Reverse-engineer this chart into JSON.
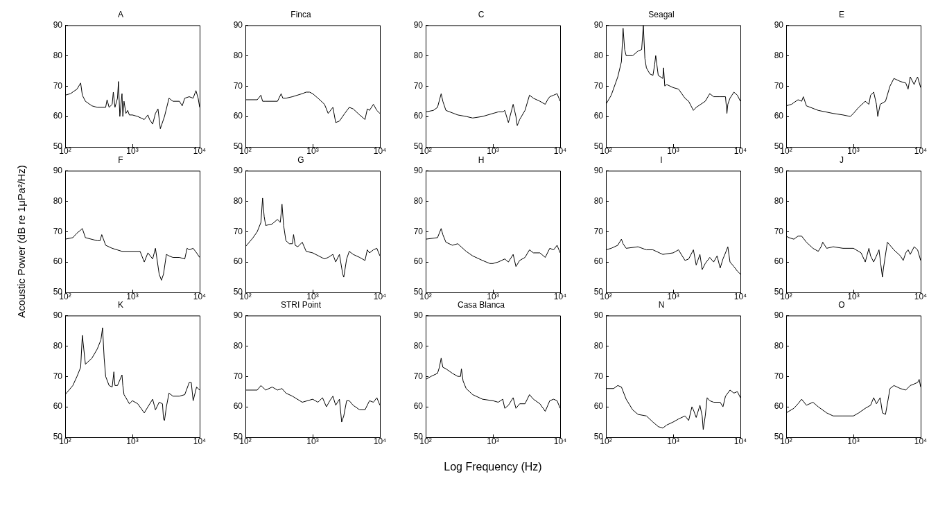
{
  "chart_data": [
    {
      "type": "line",
      "title": "A",
      "x": [
        100,
        120,
        150,
        170,
        180,
        200,
        250,
        300,
        400,
        420,
        450,
        500,
        520,
        550,
        600,
        620,
        650,
        700,
        720,
        750,
        800,
        850,
        900,
        1000,
        1200,
        1500,
        1700,
        1800,
        2000,
        2200,
        2400,
        2600,
        3000,
        3500,
        4000,
        5000,
        5500,
        6000,
        7000,
        8000,
        8800,
        9500,
        10000
      ],
      "series": [
        {
          "color": "#000000",
          "values": [
            67,
            67.5,
            69,
            71,
            67,
            65,
            63.5,
            63,
            63,
            65.5,
            63,
            64,
            68,
            63,
            66,
            71.5,
            60,
            67.5,
            60,
            65,
            61,
            62,
            60.5,
            60.5,
            60,
            59,
            60.5,
            59,
            57.5,
            61,
            62.5,
            56,
            60,
            66,
            65,
            65,
            63.5,
            66,
            66.5,
            66,
            68.5,
            66,
            63
          ]
        }
      ],
      "xlim": [
        100,
        10000
      ],
      "ylim": [
        50,
        90
      ],
      "xticks": [
        {
          "value": 100,
          "label": "10²"
        },
        {
          "value": 1000,
          "label": "10³"
        },
        {
          "value": 10000,
          "label": "10⁴"
        }
      ],
      "yticks": [
        50,
        60,
        70,
        80,
        90
      ],
      "log": "x",
      "marker": "none"
    },
    {
      "type": "line",
      "title": "Finca",
      "x": [
        100,
        150,
        170,
        180,
        200,
        300,
        340,
        360,
        400,
        500,
        700,
        800,
        900,
        1000,
        1200,
        1500,
        1700,
        2000,
        2200,
        2500,
        3000,
        3500,
        4000,
        5000,
        6000,
        6500,
        7000,
        8000,
        9000,
        10000
      ],
      "series": [
        {
          "color": "#000000",
          "values": [
            65.5,
            65.5,
            67,
            65,
            65,
            65,
            67.5,
            66,
            66,
            66.5,
            67.5,
            68,
            68,
            67.5,
            66,
            64,
            61,
            63,
            58,
            58.5,
            61,
            63,
            62.5,
            60.5,
            59,
            62.5,
            62,
            64,
            62,
            61
          ]
        }
      ],
      "xlim": [
        100,
        10000
      ],
      "ylim": [
        50,
        90
      ],
      "xticks": [
        {
          "value": 100,
          "label": "10²"
        },
        {
          "value": 1000,
          "label": "10³"
        },
        {
          "value": 10000,
          "label": "10⁴"
        }
      ],
      "yticks": [
        50,
        60,
        70,
        80,
        90
      ],
      "log": "x",
      "marker": "none"
    },
    {
      "type": "line",
      "title": "C",
      "x": [
        100,
        130,
        150,
        170,
        180,
        200,
        300,
        400,
        500,
        700,
        1000,
        1200,
        1400,
        1500,
        1700,
        2000,
        2200,
        2300,
        2500,
        3000,
        3500,
        4000,
        5000,
        6000,
        6500,
        7000,
        8000,
        9000,
        10000
      ],
      "series": [
        {
          "color": "#000000",
          "values": [
            61.5,
            62,
            63,
            67.5,
            65,
            62,
            60.5,
            60,
            59.5,
            60,
            61,
            61.5,
            61.5,
            62,
            58,
            64,
            60,
            57,
            59,
            62,
            67,
            66,
            65,
            64,
            65.5,
            66.5,
            67,
            67.5,
            65
          ]
        }
      ],
      "xlim": [
        100,
        10000
      ],
      "ylim": [
        50,
        90
      ],
      "xticks": [
        {
          "value": 100,
          "label": "10²"
        },
        {
          "value": 1000,
          "label": "10³"
        },
        {
          "value": 10000,
          "label": "10⁴"
        }
      ],
      "yticks": [
        50,
        60,
        70,
        80,
        90
      ],
      "log": "x",
      "marker": "none"
    },
    {
      "type": "line",
      "title": "Seagal",
      "x": [
        100,
        120,
        150,
        170,
        180,
        190,
        200,
        250,
        300,
        340,
        360,
        380,
        400,
        450,
        500,
        530,
        550,
        600,
        650,
        700,
        720,
        750,
        800,
        1000,
        1200,
        1500,
        1700,
        2000,
        2200,
        3000,
        3500,
        4000,
        5000,
        6000,
        6300,
        6500,
        7000,
        8000,
        9000,
        10000
      ],
      "series": [
        {
          "color": "#000000",
          "values": [
            64,
            67,
            73,
            78,
            89,
            82,
            80,
            80,
            81.5,
            82,
            90,
            79,
            76,
            74,
            73.5,
            77,
            80,
            73.5,
            73,
            72.5,
            76,
            70,
            70.5,
            69.5,
            69,
            66,
            65,
            62,
            63,
            65,
            67.5,
            66.5,
            66.5,
            66.5,
            61,
            64,
            66,
            68,
            67,
            65
          ]
        }
      ],
      "xlim": [
        100,
        10000
      ],
      "ylim": [
        50,
        90
      ],
      "xticks": [
        {
          "value": 100,
          "label": "10²"
        },
        {
          "value": 1000,
          "label": "10³"
        },
        {
          "value": 10000,
          "label": "10⁴"
        }
      ],
      "yticks": [
        50,
        60,
        70,
        80,
        90
      ],
      "log": "x",
      "marker": "none"
    },
    {
      "type": "line",
      "title": "E",
      "x": [
        100,
        120,
        150,
        170,
        180,
        200,
        300,
        500,
        700,
        900,
        1000,
        1200,
        1500,
        1700,
        1800,
        2000,
        2200,
        2300,
        2500,
        3000,
        3500,
        4000,
        5000,
        6000,
        6500,
        7000,
        8000,
        8500,
        9000,
        10000
      ],
      "series": [
        {
          "color": "#000000",
          "values": [
            63.5,
            64,
            65.5,
            65,
            66.5,
            63.5,
            62,
            61,
            60.5,
            60,
            61,
            63,
            65,
            64,
            67,
            68,
            64,
            60,
            64,
            65,
            70,
            72.5,
            71.5,
            71,
            69,
            73,
            70.5,
            72,
            73,
            69.5
          ]
        }
      ],
      "xlim": [
        100,
        10000
      ],
      "ylim": [
        50,
        90
      ],
      "xticks": [
        {
          "value": 100,
          "label": "10²"
        },
        {
          "value": 1000,
          "label": "10³"
        },
        {
          "value": 10000,
          "label": "10⁴"
        }
      ],
      "yticks": [
        50,
        60,
        70,
        80,
        90
      ],
      "log": "x",
      "marker": "none"
    },
    {
      "type": "line",
      "title": "F",
      "ylabel": "Acoustic Power (dB re 1μPa²/Hz)",
      "x": [
        100,
        130,
        150,
        170,
        180,
        200,
        300,
        330,
        350,
        400,
        500,
        700,
        1000,
        1300,
        1500,
        1700,
        2000,
        2200,
        2500,
        2700,
        2900,
        3200,
        3500,
        4000,
        5000,
        6000,
        6500,
        7000,
        8000,
        9000,
        10000
      ],
      "series": [
        {
          "color": "#000000",
          "values": [
            67.5,
            68,
            69.5,
            70.5,
            71,
            68,
            67,
            67,
            69,
            65.5,
            64.5,
            63.5,
            63.5,
            63.5,
            60,
            63,
            61,
            64.5,
            56,
            54,
            56,
            62.5,
            62,
            61.5,
            61.5,
            61,
            64.5,
            64,
            64.5,
            63,
            61.5
          ]
        }
      ],
      "xlim": [
        100,
        10000
      ],
      "ylim": [
        50,
        90
      ],
      "xticks": [
        {
          "value": 100,
          "label": "10²"
        },
        {
          "value": 1000,
          "label": "10³"
        },
        {
          "value": 10000,
          "label": "10⁴"
        }
      ],
      "yticks": [
        50,
        60,
        70,
        80,
        90
      ],
      "log": "x",
      "marker": "none"
    },
    {
      "type": "line",
      "title": "G",
      "x": [
        100,
        130,
        150,
        170,
        180,
        190,
        200,
        250,
        300,
        330,
        350,
        370,
        400,
        450,
        500,
        520,
        550,
        600,
        700,
        800,
        1000,
        1500,
        1700,
        2000,
        2200,
        2500,
        2800,
        2900,
        3200,
        3500,
        4000,
        5000,
        6000,
        6500,
        7000,
        8000,
        9000,
        10000
      ],
      "series": [
        {
          "color": "#000000",
          "values": [
            65,
            68,
            70,
            73,
            81,
            75,
            72,
            72.5,
            74,
            73,
            79,
            72,
            67,
            66,
            66,
            69,
            65.5,
            65,
            66.5,
            63.5,
            63,
            61,
            61.5,
            62.5,
            60,
            62.5,
            56,
            55,
            61,
            63.5,
            62.5,
            61.5,
            60.5,
            64,
            63,
            64,
            64.5,
            62
          ]
        }
      ],
      "xlim": [
        100,
        10000
      ],
      "ylim": [
        50,
        90
      ],
      "xticks": [
        {
          "value": 100,
          "label": "10²"
        },
        {
          "value": 1000,
          "label": "10³"
        },
        {
          "value": 10000,
          "label": "10⁴"
        }
      ],
      "yticks": [
        50,
        60,
        70,
        80,
        90
      ],
      "log": "x",
      "marker": "none"
    },
    {
      "type": "line",
      "title": "H",
      "x": [
        100,
        150,
        170,
        180,
        200,
        250,
        300,
        400,
        500,
        700,
        900,
        1000,
        1200,
        1500,
        1700,
        2000,
        2200,
        2500,
        3000,
        3500,
        4000,
        5000,
        6000,
        7000,
        8000,
        9000,
        10000
      ],
      "series": [
        {
          "color": "#000000",
          "values": [
            67.5,
            68,
            71,
            69,
            66.5,
            65.5,
            66,
            63.5,
            62,
            60.5,
            59.5,
            59.5,
            60,
            61,
            60,
            62.5,
            58.5,
            60.5,
            61.5,
            64,
            63,
            63,
            61.5,
            64.5,
            64,
            65.5,
            63
          ]
        }
      ],
      "xlim": [
        100,
        10000
      ],
      "ylim": [
        50,
        90
      ],
      "xticks": [
        {
          "value": 100,
          "label": "10²"
        },
        {
          "value": 1000,
          "label": "10³"
        },
        {
          "value": 10000,
          "label": "10⁴"
        }
      ],
      "yticks": [
        50,
        60,
        70,
        80,
        90
      ],
      "log": "x",
      "marker": "none"
    },
    {
      "type": "line",
      "title": "I",
      "x": [
        100,
        120,
        150,
        170,
        180,
        200,
        300,
        400,
        500,
        700,
        1000,
        1200,
        1500,
        1700,
        2000,
        2200,
        2500,
        2700,
        3000,
        3500,
        4000,
        4500,
        5000,
        5500,
        6000,
        6500,
        7000,
        8000,
        9000,
        10000
      ],
      "series": [
        {
          "color": "#000000",
          "values": [
            64,
            64.5,
            65.5,
            67.5,
            66,
            64.5,
            65,
            64,
            64,
            62.5,
            63,
            64,
            60.5,
            61,
            64,
            59,
            62.5,
            57.5,
            59.5,
            61.5,
            60,
            62,
            58,
            61,
            63,
            65,
            60,
            58.5,
            57,
            56
          ]
        }
      ],
      "xlim": [
        100,
        10000
      ],
      "ylim": [
        50,
        90
      ],
      "xticks": [
        {
          "value": 100,
          "label": "10²"
        },
        {
          "value": 1000,
          "label": "10³"
        },
        {
          "value": 10000,
          "label": "10⁴"
        }
      ],
      "yticks": [
        50,
        60,
        70,
        80,
        90
      ],
      "log": "x",
      "marker": "none"
    },
    {
      "type": "line",
      "title": "J",
      "x": [
        100,
        110,
        130,
        150,
        170,
        200,
        250,
        300,
        330,
        350,
        400,
        500,
        700,
        1000,
        1300,
        1500,
        1700,
        1800,
        2000,
        2200,
        2400,
        2700,
        2800,
        3200,
        3500,
        4000,
        5000,
        5500,
        6000,
        6500,
        7000,
        8000,
        9000,
        10000
      ],
      "series": [
        {
          "color": "#000000",
          "values": [
            68.5,
            68,
            67.5,
            68.5,
            68.5,
            66.5,
            64.5,
            63.5,
            65,
            66.5,
            64.5,
            65,
            64.5,
            64.5,
            63,
            60,
            64.5,
            62,
            60,
            62,
            64,
            55,
            58,
            66.5,
            65.5,
            64,
            62,
            60.5,
            63,
            64,
            62.5,
            65,
            64,
            60.5
          ]
        }
      ],
      "xlim": [
        100,
        10000
      ],
      "ylim": [
        50,
        90
      ],
      "xticks": [
        {
          "value": 100,
          "label": "10²"
        },
        {
          "value": 1000,
          "label": "10³"
        },
        {
          "value": 10000,
          "label": "10⁴"
        }
      ],
      "yticks": [
        50,
        60,
        70,
        80,
        90
      ],
      "log": "x",
      "marker": "none"
    },
    {
      "type": "line",
      "title": "K",
      "x": [
        100,
        130,
        150,
        170,
        180,
        200,
        250,
        300,
        340,
        360,
        380,
        400,
        450,
        500,
        530,
        550,
        600,
        700,
        720,
        750,
        800,
        900,
        1000,
        1200,
        1500,
        1700,
        2000,
        2200,
        2500,
        2800,
        2900,
        3000,
        3200,
        3500,
        4000,
        5000,
        6000,
        7000,
        7500,
        8000,
        9000,
        10000
      ],
      "series": [
        {
          "color": "#000000",
          "values": [
            64,
            67,
            70,
            73,
            83.5,
            74,
            76,
            79,
            82,
            86,
            76,
            70,
            67,
            66.5,
            71.5,
            67,
            67,
            70.5,
            67,
            64,
            63,
            61,
            62,
            61,
            58,
            60,
            62.5,
            59,
            61.5,
            61,
            56,
            55.5,
            60,
            64.5,
            63.5,
            63.5,
            64,
            68,
            68,
            62,
            66.5,
            65.5
          ]
        }
      ],
      "xlim": [
        100,
        10000
      ],
      "ylim": [
        50,
        90
      ],
      "xticks": [
        {
          "value": 100,
          "label": "10²"
        },
        {
          "value": 1000,
          "label": "10³"
        },
        {
          "value": 10000,
          "label": "10⁴"
        }
      ],
      "yticks": [
        50,
        60,
        70,
        80,
        90
      ],
      "log": "x",
      "marker": "none"
    },
    {
      "type": "line",
      "title": "STRI Point",
      "x": [
        100,
        150,
        170,
        200,
        250,
        300,
        350,
        400,
        500,
        700,
        1000,
        1200,
        1400,
        1600,
        1800,
        2000,
        2200,
        2500,
        2700,
        2900,
        3200,
        3500,
        4000,
        5000,
        6000,
        7000,
        8000,
        9000,
        10000
      ],
      "series": [
        {
          "color": "#000000",
          "values": [
            65.5,
            65.5,
            67,
            65.5,
            66.5,
            65.5,
            66,
            64.5,
            63.5,
            61.5,
            62.5,
            61.5,
            63,
            60,
            62,
            63.5,
            60.5,
            62.5,
            55,
            57,
            62,
            62,
            60.5,
            59,
            59,
            62,
            61.5,
            63,
            60.5
          ]
        }
      ],
      "xlim": [
        100,
        10000
      ],
      "ylim": [
        50,
        90
      ],
      "xticks": [
        {
          "value": 100,
          "label": "10²"
        },
        {
          "value": 1000,
          "label": "10³"
        },
        {
          "value": 10000,
          "label": "10⁴"
        }
      ],
      "yticks": [
        50,
        60,
        70,
        80,
        90
      ],
      "log": "x",
      "marker": "none"
    },
    {
      "type": "line",
      "title": "Casa Blanca",
      "xlabel": "Log Frequency (Hz)",
      "x": [
        100,
        120,
        150,
        160,
        170,
        180,
        200,
        250,
        300,
        330,
        340,
        360,
        400,
        500,
        700,
        1000,
        1200,
        1400,
        1500,
        1700,
        2000,
        2200,
        2500,
        3000,
        3500,
        4000,
        5000,
        6000,
        7000,
        8000,
        9000,
        10000
      ],
      "series": [
        {
          "color": "#000000",
          "values": [
            69,
            70,
            71,
            73,
            76,
            73,
            72.5,
            71,
            70,
            70,
            72.5,
            68.5,
            66,
            64,
            62.5,
            62,
            61.5,
            62.5,
            59.5,
            60.5,
            63,
            59.5,
            61,
            61,
            64,
            62.5,
            61,
            58.5,
            62,
            62.5,
            62,
            59.5
          ]
        }
      ],
      "xlim": [
        100,
        10000
      ],
      "ylim": [
        50,
        90
      ],
      "xticks": [
        {
          "value": 100,
          "label": "10²"
        },
        {
          "value": 1000,
          "label": "10³"
        },
        {
          "value": 10000,
          "label": "10⁴"
        }
      ],
      "yticks": [
        50,
        60,
        70,
        80,
        90
      ],
      "log": "x",
      "marker": "none"
    },
    {
      "type": "line",
      "title": "N",
      "x": [
        100,
        130,
        150,
        170,
        200,
        250,
        300,
        400,
        500,
        600,
        700,
        800,
        1000,
        1200,
        1500,
        1700,
        1900,
        2000,
        2200,
        2500,
        2700,
        2800,
        3000,
        3200,
        3500,
        4000,
        5000,
        5500,
        6000,
        7000,
        8000,
        9000,
        10000
      ],
      "series": [
        {
          "color": "#000000",
          "values": [
            66,
            66,
            67,
            66.5,
            62.5,
            59,
            57.5,
            57,
            55,
            53.5,
            53,
            54,
            55,
            56,
            57,
            55.5,
            60,
            59,
            56.5,
            60.5,
            57,
            52.5,
            57,
            63,
            62,
            61.5,
            61.5,
            60,
            63.5,
            65.5,
            64.5,
            65,
            63
          ]
        }
      ],
      "xlim": [
        100,
        10000
      ],
      "ylim": [
        50,
        90
      ],
      "xticks": [
        {
          "value": 100,
          "label": "10²"
        },
        {
          "value": 1000,
          "label": "10³"
        },
        {
          "value": 10000,
          "label": "10⁴"
        }
      ],
      "yticks": [
        50,
        60,
        70,
        80,
        90
      ],
      "log": "x",
      "marker": "none"
    },
    {
      "type": "line",
      "title": "O",
      "x": [
        100,
        130,
        150,
        170,
        200,
        250,
        300,
        400,
        500,
        700,
        1000,
        1200,
        1500,
        1800,
        2000,
        2200,
        2500,
        2700,
        3000,
        3500,
        4000,
        5000,
        6000,
        7000,
        8000,
        9000,
        9500,
        10000
      ],
      "series": [
        {
          "color": "#000000",
          "values": [
            58,
            59.5,
            61,
            62.5,
            60.5,
            61.5,
            60,
            58,
            57,
            57,
            57,
            58,
            59.5,
            60.5,
            63,
            61,
            63,
            58,
            57.5,
            66,
            67,
            66,
            65.5,
            67,
            67.5,
            68,
            69,
            66.5
          ]
        }
      ],
      "xlim": [
        100,
        10000
      ],
      "ylim": [
        50,
        90
      ],
      "xticks": [
        {
          "value": 100,
          "label": "10²"
        },
        {
          "value": 1000,
          "label": "10³"
        },
        {
          "value": 10000,
          "label": "10⁴"
        }
      ],
      "yticks": [
        50,
        60,
        70,
        80,
        90
      ],
      "log": "x",
      "marker": "none"
    }
  ]
}
